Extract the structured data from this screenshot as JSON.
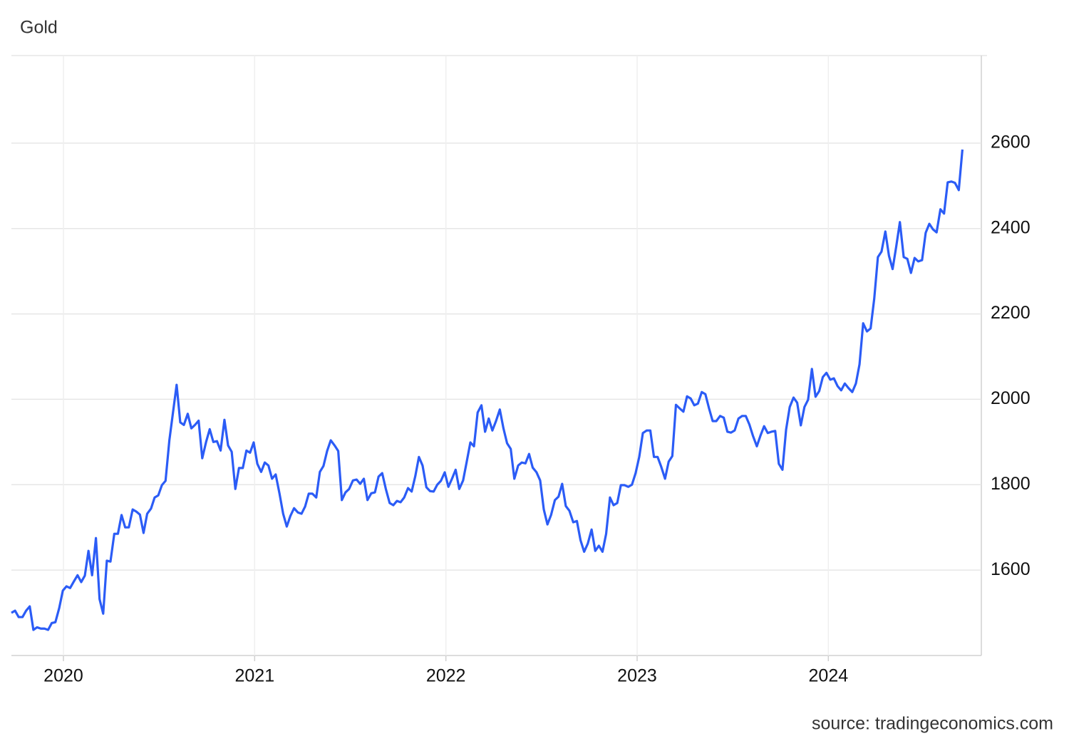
{
  "chart_data": {
    "type": "line",
    "title": "Gold",
    "source": "source: tradingeconomics.com",
    "color": "#2b5cf6",
    "grid": true,
    "xlim": [
      2019.728,
      2024.8
    ],
    "xticks": [
      2020,
      2021,
      2022,
      2023,
      2024
    ],
    "ylim": [
      1400,
      2805
    ],
    "yticks": [
      1600,
      1800,
      2000,
      2200,
      2400,
      2600
    ],
    "x": [
      2019.728,
      2019.747,
      2019.766,
      2019.786,
      2019.805,
      2019.824,
      2019.843,
      2019.862,
      2019.882,
      2019.901,
      2019.92,
      2019.939,
      2019.958,
      2019.978,
      2019.997,
      2020.016,
      2020.035,
      2020.054,
      2020.074,
      2020.093,
      2020.112,
      2020.131,
      2020.15,
      2020.17,
      2020.189,
      2020.208,
      2020.227,
      2020.246,
      2020.266,
      2020.285,
      2020.304,
      2020.323,
      2020.342,
      2020.362,
      2020.381,
      2020.4,
      2020.419,
      2020.438,
      2020.458,
      2020.477,
      2020.496,
      2020.515,
      2020.534,
      2020.554,
      2020.573,
      2020.592,
      2020.611,
      2020.63,
      2020.65,
      2020.669,
      2020.688,
      2020.707,
      2020.726,
      2020.746,
      2020.765,
      2020.784,
      2020.803,
      2020.822,
      2020.842,
      2020.861,
      2020.88,
      2020.899,
      2020.918,
      2020.938,
      2020.957,
      2020.976,
      2020.995,
      2021.014,
      2021.034,
      2021.053,
      2021.072,
      2021.091,
      2021.11,
      2021.13,
      2021.149,
      2021.168,
      2021.187,
      2021.206,
      2021.226,
      2021.245,
      2021.264,
      2021.283,
      2021.302,
      2021.322,
      2021.341,
      2021.36,
      2021.379,
      2021.398,
      2021.418,
      2021.437,
      2021.456,
      2021.475,
      2021.494,
      2021.514,
      2021.533,
      2021.552,
      2021.571,
      2021.59,
      2021.61,
      2021.629,
      2021.648,
      2021.667,
      2021.686,
      2021.706,
      2021.725,
      2021.744,
      2021.763,
      2021.782,
      2021.802,
      2021.821,
      2021.84,
      2021.859,
      2021.878,
      2021.898,
      2021.917,
      2021.936,
      2021.955,
      2021.974,
      2021.994,
      2022.013,
      2022.032,
      2022.051,
      2022.07,
      2022.09,
      2022.109,
      2022.128,
      2022.147,
      2022.166,
      2022.186,
      2022.205,
      2022.224,
      2022.243,
      2022.262,
      2022.282,
      2022.301,
      2022.32,
      2022.339,
      2022.358,
      2022.378,
      2022.397,
      2022.416,
      2022.435,
      2022.454,
      2022.474,
      2022.493,
      2022.512,
      2022.531,
      2022.55,
      2022.57,
      2022.589,
      2022.608,
      2022.627,
      2022.646,
      2022.666,
      2022.685,
      2022.704,
      2022.723,
      2022.742,
      2022.762,
      2022.781,
      2022.8,
      2022.819,
      2022.838,
      2022.858,
      2022.877,
      2022.896,
      2022.915,
      2022.934,
      2022.954,
      2022.973,
      2022.992,
      2023.011,
      2023.03,
      2023.05,
      2023.069,
      2023.088,
      2023.107,
      2023.126,
      2023.146,
      2023.165,
      2023.184,
      2023.203,
      2023.222,
      2023.242,
      2023.261,
      2023.28,
      2023.299,
      2023.318,
      2023.338,
      2023.357,
      2023.376,
      2023.395,
      2023.414,
      2023.434,
      2023.453,
      2023.472,
      2023.491,
      2023.51,
      2023.53,
      2023.549,
      2023.568,
      2023.587,
      2023.606,
      2023.626,
      2023.645,
      2023.664,
      2023.683,
      2023.702,
      2023.722,
      2023.741,
      2023.76,
      2023.779,
      2023.798,
      2023.818,
      2023.837,
      2023.856,
      2023.875,
      2023.894,
      2023.914,
      2023.933,
      2023.952,
      2023.971,
      2023.99,
      2024.01,
      2024.029,
      2024.048,
      2024.067,
      2024.086,
      2024.106,
      2024.125,
      2024.144,
      2024.163,
      2024.182,
      2024.202,
      2024.221,
      2024.24,
      2024.259,
      2024.278,
      2024.298,
      2024.317,
      2024.336,
      2024.355,
      2024.374,
      2024.394,
      2024.413,
      2024.432,
      2024.451,
      2024.47,
      2024.49,
      2024.509,
      2024.528,
      2024.547,
      2024.566,
      2024.586,
      2024.605,
      2024.624,
      2024.643,
      2024.662,
      2024.682,
      2024.701
    ],
    "values": [
      1500,
      1505,
      1490,
      1490,
      1505,
      1515,
      1460,
      1466,
      1463,
      1463,
      1460,
      1476,
      1478,
      1511,
      1552,
      1562,
      1558,
      1573,
      1588,
      1572,
      1587,
      1645,
      1588,
      1675,
      1532,
      1498,
      1622,
      1620,
      1685,
      1685,
      1729,
      1700,
      1700,
      1742,
      1737,
      1730,
      1687,
      1732,
      1744,
      1770,
      1775,
      1799,
      1809,
      1904,
      1969,
      2034,
      1946,
      1940,
      1966,
      1932,
      1940,
      1950,
      1862,
      1900,
      1930,
      1900,
      1902,
      1880,
      1952,
      1892,
      1877,
      1790,
      1839,
      1839,
      1880,
      1875,
      1899,
      1849,
      1830,
      1852,
      1845,
      1814,
      1824,
      1779,
      1732,
      1702,
      1727,
      1745,
      1735,
      1732,
      1749,
      1779,
      1779,
      1770,
      1830,
      1844,
      1879,
      1904,
      1892,
      1879,
      1764,
      1782,
      1790,
      1810,
      1812,
      1802,
      1814,
      1764,
      1780,
      1782,
      1819,
      1827,
      1790,
      1757,
      1752,
      1762,
      1759,
      1770,
      1792,
      1784,
      1820,
      1865,
      1845,
      1794,
      1785,
      1784,
      1800,
      1809,
      1829,
      1795,
      1814,
      1835,
      1790,
      1810,
      1854,
      1899,
      1890,
      1969,
      1986,
      1924,
      1955,
      1927,
      1949,
      1976,
      1932,
      1897,
      1884,
      1814,
      1845,
      1852,
      1850,
      1872,
      1840,
      1829,
      1810,
      1742,
      1707,
      1729,
      1764,
      1772,
      1802,
      1750,
      1739,
      1712,
      1715,
      1670,
      1643,
      1662,
      1695,
      1645,
      1657,
      1643,
      1685,
      1770,
      1752,
      1757,
      1799,
      1799,
      1795,
      1800,
      1827,
      1865,
      1921,
      1927,
      1927,
      1865,
      1865,
      1842,
      1814,
      1854,
      1867,
      1987,
      1979,
      1971,
      2007,
      2002,
      1986,
      1990,
      2017,
      2012,
      1979,
      1949,
      1949,
      1961,
      1957,
      1924,
      1922,
      1927,
      1955,
      1961,
      1961,
      1941,
      1914,
      1890,
      1915,
      1937,
      1921,
      1924,
      1926,
      1849,
      1835,
      1929,
      1982,
      2004,
      1992,
      1939,
      1982,
      1999,
      2071,
      2006,
      2019,
      2052,
      2062,
      2046,
      2049,
      2031,
      2021,
      2037,
      2026,
      2017,
      2037,
      2082,
      2178,
      2159,
      2166,
      2236,
      2333,
      2346,
      2393,
      2336,
      2305,
      2358,
      2415,
      2333,
      2329,
      2296,
      2331,
      2323,
      2326,
      2390,
      2411,
      2398,
      2391,
      2445,
      2435,
      2508,
      2510,
      2507,
      2490,
      2585
    ]
  }
}
